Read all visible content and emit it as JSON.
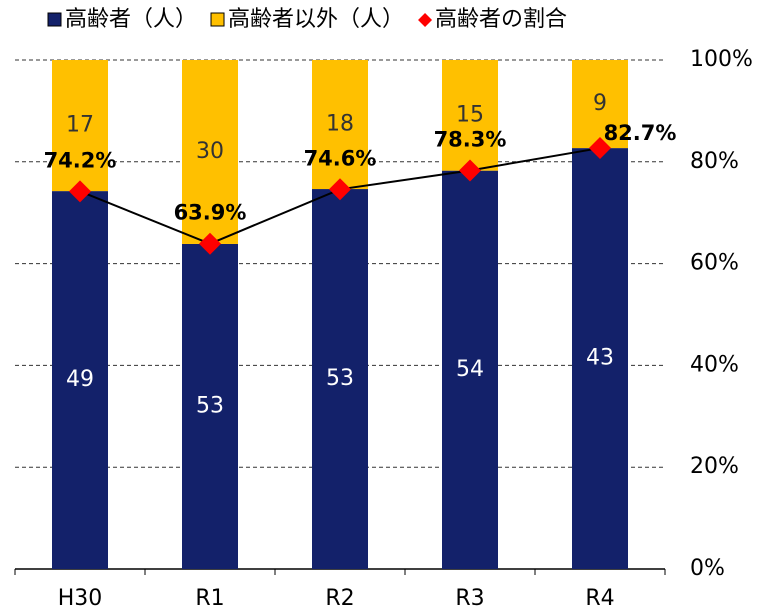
{
  "chart_data": {
    "type": "bar",
    "stack": "percent",
    "categories": [
      "H30",
      "R1",
      "R2",
      "R3",
      "R4"
    ],
    "series": [
      {
        "name": "高齢者（人）",
        "color": "#13216a",
        "label_color": "#ffffff",
        "values": [
          49,
          53,
          53,
          54,
          43
        ]
      },
      {
        "name": "高齢者以外（人）",
        "color": "#ffc000",
        "label_color": "#333333",
        "values": [
          17,
          30,
          18,
          15,
          9
        ]
      },
      {
        "name": "高齢者の割合",
        "type": "line",
        "color": "#ff0000",
        "line_color": "#000000",
        "axis": "y2",
        "values": [
          74.2,
          63.9,
          74.6,
          78.3,
          82.7
        ],
        "value_labels": [
          "74.2%",
          "63.9%",
          "74.6%",
          "78.3%",
          "82.7%"
        ]
      }
    ],
    "y2lim": [
      0,
      100
    ],
    "y2ticks": [
      {
        "value": 0,
        "label": "0%"
      },
      {
        "value": 20,
        "label": "20%"
      },
      {
        "value": 40,
        "label": "40%"
      },
      {
        "value": 60,
        "label": "60%"
      },
      {
        "value": 80,
        "label": "80%"
      },
      {
        "value": 100,
        "label": "100%"
      }
    ],
    "grid": true,
    "legend": "top"
  }
}
